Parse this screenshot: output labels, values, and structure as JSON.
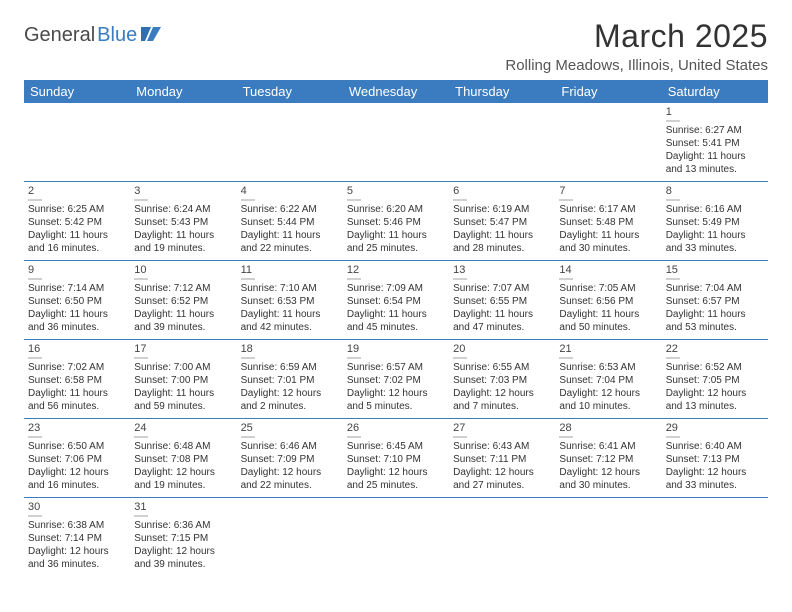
{
  "logo": {
    "text1": "General",
    "text2": "Blue"
  },
  "title": "March 2025",
  "location": "Rolling Meadows, Illinois, United States",
  "colors": {
    "header_bg": "#3b7bbf",
    "header_text": "#ffffff",
    "body_text": "#333333",
    "rule": "#3b7bbf"
  },
  "dayNames": [
    "Sunday",
    "Monday",
    "Tuesday",
    "Wednesday",
    "Thursday",
    "Friday",
    "Saturday"
  ],
  "weeks": [
    [
      null,
      null,
      null,
      null,
      null,
      null,
      {
        "n": "1",
        "sr": "Sunrise: 6:27 AM",
        "ss": "Sunset: 5:41 PM",
        "d1": "Daylight: 11 hours",
        "d2": "and 13 minutes."
      }
    ],
    [
      {
        "n": "2",
        "sr": "Sunrise: 6:25 AM",
        "ss": "Sunset: 5:42 PM",
        "d1": "Daylight: 11 hours",
        "d2": "and 16 minutes."
      },
      {
        "n": "3",
        "sr": "Sunrise: 6:24 AM",
        "ss": "Sunset: 5:43 PM",
        "d1": "Daylight: 11 hours",
        "d2": "and 19 minutes."
      },
      {
        "n": "4",
        "sr": "Sunrise: 6:22 AM",
        "ss": "Sunset: 5:44 PM",
        "d1": "Daylight: 11 hours",
        "d2": "and 22 minutes."
      },
      {
        "n": "5",
        "sr": "Sunrise: 6:20 AM",
        "ss": "Sunset: 5:46 PM",
        "d1": "Daylight: 11 hours",
        "d2": "and 25 minutes."
      },
      {
        "n": "6",
        "sr": "Sunrise: 6:19 AM",
        "ss": "Sunset: 5:47 PM",
        "d1": "Daylight: 11 hours",
        "d2": "and 28 minutes."
      },
      {
        "n": "7",
        "sr": "Sunrise: 6:17 AM",
        "ss": "Sunset: 5:48 PM",
        "d1": "Daylight: 11 hours",
        "d2": "and 30 minutes."
      },
      {
        "n": "8",
        "sr": "Sunrise: 6:16 AM",
        "ss": "Sunset: 5:49 PM",
        "d1": "Daylight: 11 hours",
        "d2": "and 33 minutes."
      }
    ],
    [
      {
        "n": "9",
        "sr": "Sunrise: 7:14 AM",
        "ss": "Sunset: 6:50 PM",
        "d1": "Daylight: 11 hours",
        "d2": "and 36 minutes."
      },
      {
        "n": "10",
        "sr": "Sunrise: 7:12 AM",
        "ss": "Sunset: 6:52 PM",
        "d1": "Daylight: 11 hours",
        "d2": "and 39 minutes."
      },
      {
        "n": "11",
        "sr": "Sunrise: 7:10 AM",
        "ss": "Sunset: 6:53 PM",
        "d1": "Daylight: 11 hours",
        "d2": "and 42 minutes."
      },
      {
        "n": "12",
        "sr": "Sunrise: 7:09 AM",
        "ss": "Sunset: 6:54 PM",
        "d1": "Daylight: 11 hours",
        "d2": "and 45 minutes."
      },
      {
        "n": "13",
        "sr": "Sunrise: 7:07 AM",
        "ss": "Sunset: 6:55 PM",
        "d1": "Daylight: 11 hours",
        "d2": "and 47 minutes."
      },
      {
        "n": "14",
        "sr": "Sunrise: 7:05 AM",
        "ss": "Sunset: 6:56 PM",
        "d1": "Daylight: 11 hours",
        "d2": "and 50 minutes."
      },
      {
        "n": "15",
        "sr": "Sunrise: 7:04 AM",
        "ss": "Sunset: 6:57 PM",
        "d1": "Daylight: 11 hours",
        "d2": "and 53 minutes."
      }
    ],
    [
      {
        "n": "16",
        "sr": "Sunrise: 7:02 AM",
        "ss": "Sunset: 6:58 PM",
        "d1": "Daylight: 11 hours",
        "d2": "and 56 minutes."
      },
      {
        "n": "17",
        "sr": "Sunrise: 7:00 AM",
        "ss": "Sunset: 7:00 PM",
        "d1": "Daylight: 11 hours",
        "d2": "and 59 minutes."
      },
      {
        "n": "18",
        "sr": "Sunrise: 6:59 AM",
        "ss": "Sunset: 7:01 PM",
        "d1": "Daylight: 12 hours",
        "d2": "and 2 minutes."
      },
      {
        "n": "19",
        "sr": "Sunrise: 6:57 AM",
        "ss": "Sunset: 7:02 PM",
        "d1": "Daylight: 12 hours",
        "d2": "and 5 minutes."
      },
      {
        "n": "20",
        "sr": "Sunrise: 6:55 AM",
        "ss": "Sunset: 7:03 PM",
        "d1": "Daylight: 12 hours",
        "d2": "and 7 minutes."
      },
      {
        "n": "21",
        "sr": "Sunrise: 6:53 AM",
        "ss": "Sunset: 7:04 PM",
        "d1": "Daylight: 12 hours",
        "d2": "and 10 minutes."
      },
      {
        "n": "22",
        "sr": "Sunrise: 6:52 AM",
        "ss": "Sunset: 7:05 PM",
        "d1": "Daylight: 12 hours",
        "d2": "and 13 minutes."
      }
    ],
    [
      {
        "n": "23",
        "sr": "Sunrise: 6:50 AM",
        "ss": "Sunset: 7:06 PM",
        "d1": "Daylight: 12 hours",
        "d2": "and 16 minutes."
      },
      {
        "n": "24",
        "sr": "Sunrise: 6:48 AM",
        "ss": "Sunset: 7:08 PM",
        "d1": "Daylight: 12 hours",
        "d2": "and 19 minutes."
      },
      {
        "n": "25",
        "sr": "Sunrise: 6:46 AM",
        "ss": "Sunset: 7:09 PM",
        "d1": "Daylight: 12 hours",
        "d2": "and 22 minutes."
      },
      {
        "n": "26",
        "sr": "Sunrise: 6:45 AM",
        "ss": "Sunset: 7:10 PM",
        "d1": "Daylight: 12 hours",
        "d2": "and 25 minutes."
      },
      {
        "n": "27",
        "sr": "Sunrise: 6:43 AM",
        "ss": "Sunset: 7:11 PM",
        "d1": "Daylight: 12 hours",
        "d2": "and 27 minutes."
      },
      {
        "n": "28",
        "sr": "Sunrise: 6:41 AM",
        "ss": "Sunset: 7:12 PM",
        "d1": "Daylight: 12 hours",
        "d2": "and 30 minutes."
      },
      {
        "n": "29",
        "sr": "Sunrise: 6:40 AM",
        "ss": "Sunset: 7:13 PM",
        "d1": "Daylight: 12 hours",
        "d2": "and 33 minutes."
      }
    ],
    [
      {
        "n": "30",
        "sr": "Sunrise: 6:38 AM",
        "ss": "Sunset: 7:14 PM",
        "d1": "Daylight: 12 hours",
        "d2": "and 36 minutes."
      },
      {
        "n": "31",
        "sr": "Sunrise: 6:36 AM",
        "ss": "Sunset: 7:15 PM",
        "d1": "Daylight: 12 hours",
        "d2": "and 39 minutes."
      },
      null,
      null,
      null,
      null,
      null
    ]
  ]
}
